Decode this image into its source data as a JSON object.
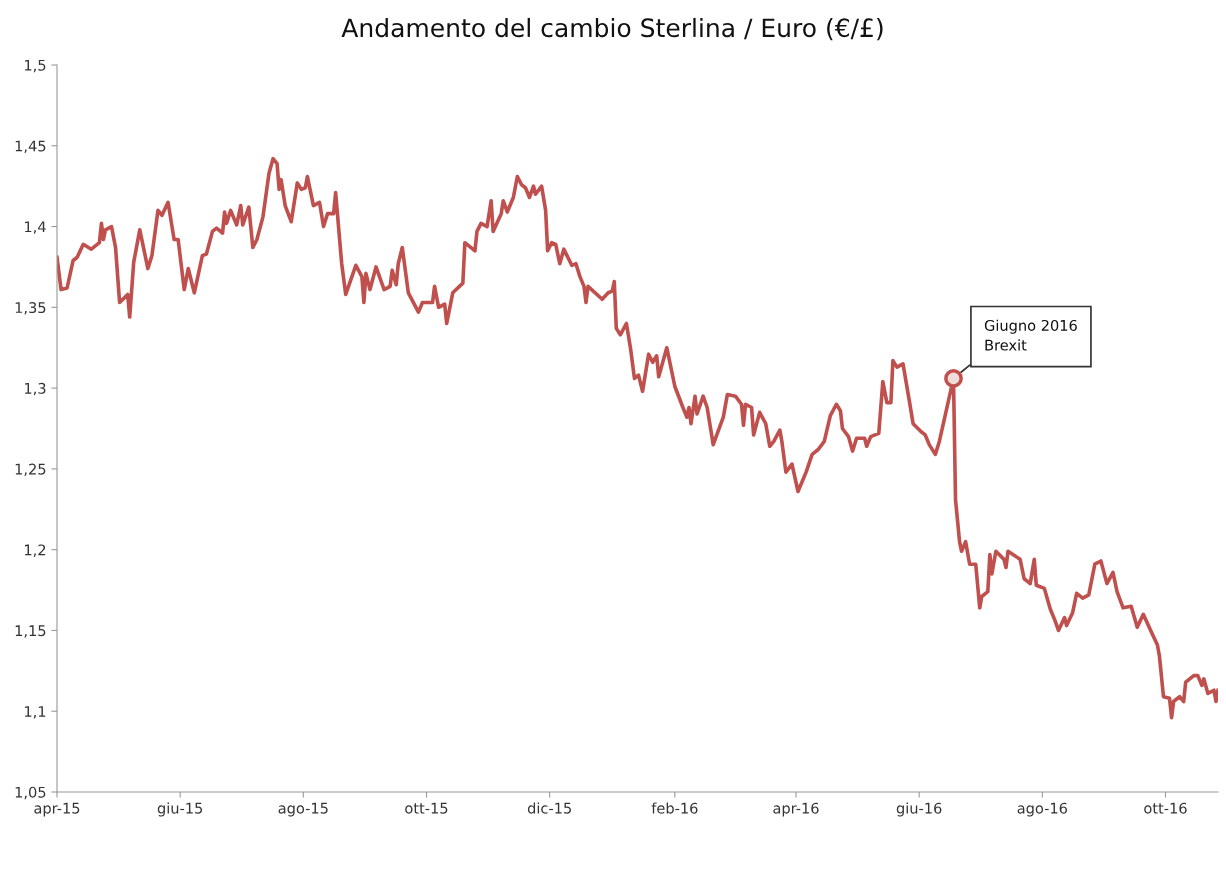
{
  "chart_data": {
    "type": "line",
    "title": "Andamento del cambio Sterlina / Euro (€/£)",
    "x": [
      "2015-04-01",
      "2015-04-03",
      "2015-04-06",
      "2015-04-09",
      "2015-04-11",
      "2015-04-14",
      "2015-04-18",
      "2015-04-22",
      "2015-04-23",
      "2015-04-24",
      "2015-04-25",
      "2015-04-28",
      "2015-04-30",
      "2015-05-02",
      "2015-05-06",
      "2015-05-07",
      "2015-05-09",
      "2015-05-12",
      "2015-05-16",
      "2015-05-18",
      "2015-05-21",
      "2015-05-23",
      "2015-05-26",
      "2015-05-29",
      "2015-05-31",
      "2015-06-03",
      "2015-06-05",
      "2015-06-08",
      "2015-06-12",
      "2015-06-14",
      "2015-06-17",
      "2015-06-19",
      "2015-06-22",
      "2015-06-23",
      "2015-06-24",
      "2015-06-26",
      "2015-06-29",
      "2015-07-01",
      "2015-07-02",
      "2015-07-05",
      "2015-07-07",
      "2015-07-09",
      "2015-07-12",
      "2015-07-15",
      "2015-07-17",
      "2015-07-19",
      "2015-07-20",
      "2015-07-21",
      "2015-07-23",
      "2015-07-26",
      "2015-07-29",
      "2015-07-31",
      "2015-08-02",
      "2015-08-03",
      "2015-08-06",
      "2015-08-09",
      "2015-08-11",
      "2015-08-13",
      "2015-08-16",
      "2015-08-17",
      "2015-08-20",
      "2015-08-22",
      "2015-08-27",
      "2015-08-30",
      "2015-08-31",
      "2015-09-01",
      "2015-09-03",
      "2015-09-06",
      "2015-09-10",
      "2015-09-13",
      "2015-09-14",
      "2015-09-16",
      "2015-09-17",
      "2015-09-19",
      "2015-09-22",
      "2015-09-27",
      "2015-09-29",
      "2015-10-04",
      "2015-10-05",
      "2015-10-07",
      "2015-10-10",
      "2015-10-11",
      "2015-10-14",
      "2015-10-19",
      "2015-10-20",
      "2015-10-25",
      "2015-10-26",
      "2015-10-28",
      "2015-10-31",
      "2015-11-02",
      "2015-11-03",
      "2015-11-07",
      "2015-11-08",
      "2015-11-10",
      "2015-11-13",
      "2015-11-15",
      "2015-11-17",
      "2015-11-19",
      "2015-11-21",
      "2015-11-23",
      "2015-11-24",
      "2015-11-27",
      "2015-11-29",
      "2015-11-30",
      "2015-12-02",
      "2015-12-04",
      "2015-12-06",
      "2015-12-08",
      "2015-12-12",
      "2015-12-14",
      "2015-12-16",
      "2015-12-18",
      "2015-12-19",
      "2015-12-20",
      "2015-12-27",
      "2015-12-30",
      "2016-01-01",
      "2016-01-02",
      "2016-01-03",
      "2016-01-05",
      "2016-01-08",
      "2016-01-10",
      "2016-01-12",
      "2016-01-14",
      "2016-01-16",
      "2016-01-19",
      "2016-01-21",
      "2016-01-23",
      "2016-01-24",
      "2016-01-28",
      "2016-02-01",
      "2016-02-05",
      "2016-02-07",
      "2016-02-08",
      "2016-02-09",
      "2016-02-11",
      "2016-02-12",
      "2016-02-15",
      "2016-02-17",
      "2016-02-20",
      "2016-02-25",
      "2016-02-27",
      "2016-03-02",
      "2016-03-05",
      "2016-03-06",
      "2016-03-07",
      "2016-03-10",
      "2016-03-11",
      "2016-03-14",
      "2016-03-17",
      "2016-03-19",
      "2016-03-21",
      "2016-03-24",
      "2016-03-25",
      "2016-03-27",
      "2016-03-30",
      "2016-04-02",
      "2016-04-06",
      "2016-04-09",
      "2016-04-12",
      "2016-04-15",
      "2016-04-18",
      "2016-04-21",
      "2016-04-23",
      "2016-04-24",
      "2016-04-27",
      "2016-04-29",
      "2016-05-01",
      "2016-05-05",
      "2016-05-06",
      "2016-05-08",
      "2016-05-12",
      "2016-05-14",
      "2016-05-16",
      "2016-05-18",
      "2016-05-19",
      "2016-05-21",
      "2016-05-24",
      "2016-05-27",
      "2016-05-29",
      "2016-06-02",
      "2016-06-04",
      "2016-06-06",
      "2016-06-09",
      "2016-06-11",
      "2016-06-18",
      "2016-06-19",
      "2016-06-21",
      "2016-06-22",
      "2016-06-24",
      "2016-06-26",
      "2016-06-29",
      "2016-07-01",
      "2016-07-02",
      "2016-07-05",
      "2016-07-06",
      "2016-07-07",
      "2016-07-09",
      "2016-07-13",
      "2016-07-14",
      "2016-07-15",
      "2016-07-21",
      "2016-07-23",
      "2016-07-26",
      "2016-07-28",
      "2016-07-29",
      "2016-08-02",
      "2016-08-05",
      "2016-08-07",
      "2016-08-09",
      "2016-08-12",
      "2016-08-13",
      "2016-08-16",
      "2016-08-18",
      "2016-08-21",
      "2016-08-24",
      "2016-08-27",
      "2016-08-30",
      "2016-09-02",
      "2016-09-05",
      "2016-09-07",
      "2016-09-10",
      "2016-09-14",
      "2016-09-17",
      "2016-09-20",
      "2016-09-24",
      "2016-09-27",
      "2016-09-28",
      "2016-09-30",
      "2016-10-03",
      "2016-10-04",
      "2016-10-05",
      "2016-10-08",
      "2016-10-10",
      "2016-10-11",
      "2016-10-15",
      "2016-10-17",
      "2016-10-19",
      "2016-10-20",
      "2016-10-22",
      "2016-10-25",
      "2016-10-26",
      "2016-10-27"
    ],
    "series": [
      {
        "color": "#c0504d",
        "values": [
          1.381,
          1.361,
          1.362,
          1.379,
          1.381,
          1.389,
          1.386,
          1.39,
          1.402,
          1.392,
          1.398,
          1.4,
          1.387,
          1.353,
          1.358,
          1.344,
          1.378,
          1.398,
          1.374,
          1.382,
          1.41,
          1.407,
          1.415,
          1.392,
          1.392,
          1.361,
          1.374,
          1.359,
          1.382,
          1.383,
          1.397,
          1.399,
          1.396,
          1.409,
          1.402,
          1.41,
          1.401,
          1.413,
          1.401,
          1.412,
          1.387,
          1.392,
          1.406,
          1.433,
          1.442,
          1.439,
          1.423,
          1.429,
          1.413,
          1.403,
          1.427,
          1.423,
          1.424,
          1.431,
          1.413,
          1.415,
          1.4,
          1.408,
          1.408,
          1.421,
          1.377,
          1.358,
          1.376,
          1.369,
          1.353,
          1.371,
          1.361,
          1.375,
          1.361,
          1.363,
          1.373,
          1.364,
          1.377,
          1.387,
          1.359,
          1.347,
          1.353,
          1.353,
          1.363,
          1.35,
          1.352,
          1.34,
          1.359,
          1.365,
          1.39,
          1.385,
          1.397,
          1.402,
          1.4,
          1.416,
          1.397,
          1.408,
          1.416,
          1.409,
          1.418,
          1.431,
          1.426,
          1.424,
          1.418,
          1.425,
          1.42,
          1.425,
          1.41,
          1.385,
          1.39,
          1.389,
          1.377,
          1.386,
          1.376,
          1.377,
          1.369,
          1.363,
          1.353,
          1.363,
          1.355,
          1.359,
          1.36,
          1.366,
          1.337,
          1.333,
          1.34,
          1.325,
          1.306,
          1.308,
          1.298,
          1.321,
          1.316,
          1.32,
          1.307,
          1.325,
          1.301,
          1.288,
          1.282,
          1.288,
          1.278,
          1.295,
          1.284,
          1.295,
          1.288,
          1.265,
          1.282,
          1.296,
          1.295,
          1.29,
          1.277,
          1.29,
          1.288,
          1.271,
          1.285,
          1.278,
          1.264,
          1.267,
          1.274,
          1.267,
          1.248,
          1.253,
          1.236,
          1.248,
          1.259,
          1.262,
          1.267,
          1.283,
          1.29,
          1.286,
          1.275,
          1.27,
          1.261,
          1.269,
          1.269,
          1.264,
          1.27,
          1.272,
          1.304,
          1.291,
          1.291,
          1.317,
          1.313,
          1.315,
          1.293,
          1.278,
          1.273,
          1.271,
          1.265,
          1.259,
          1.267,
          1.306,
          1.231,
          1.205,
          1.199,
          1.205,
          1.191,
          1.191,
          1.164,
          1.171,
          1.174,
          1.197,
          1.185,
          1.199,
          1.194,
          1.189,
          1.199,
          1.194,
          1.182,
          1.179,
          1.194,
          1.178,
          1.176,
          1.163,
          1.157,
          1.15,
          1.158,
          1.153,
          1.161,
          1.173,
          1.17,
          1.172,
          1.191,
          1.193,
          1.179,
          1.186,
          1.174,
          1.164,
          1.165,
          1.152,
          1.16,
          1.149,
          1.141,
          1.134,
          1.109,
          1.108,
          1.096,
          1.106,
          1.109,
          1.106,
          1.118,
          1.122,
          1.122,
          1.116,
          1.12,
          1.111,
          1.113,
          1.106,
          1.113
        ]
      }
    ],
    "xlim": [
      "2015-04-01",
      "2016-10-27"
    ],
    "xticks": [
      {
        "value": "2015-04-01",
        "label": "apr-15"
      },
      {
        "value": "2015-06-01",
        "label": "giu-15"
      },
      {
        "value": "2015-08-01",
        "label": "ago-15"
      },
      {
        "value": "2015-10-01",
        "label": "ott-15"
      },
      {
        "value": "2015-12-01",
        "label": "dic-15"
      },
      {
        "value": "2016-02-01",
        "label": "feb-16"
      },
      {
        "value": "2016-04-01",
        "label": "apr-16"
      },
      {
        "value": "2016-06-01",
        "label": "giu-16"
      },
      {
        "value": "2016-08-01",
        "label": "ago-16"
      },
      {
        "value": "2016-10-01",
        "label": "ott-16"
      }
    ],
    "ylim": [
      1.05,
      1.5
    ],
    "yticks": [
      {
        "value": 1.05,
        "label": "1,05"
      },
      {
        "value": 1.1,
        "label": "1,1"
      },
      {
        "value": 1.15,
        "label": "1,15"
      },
      {
        "value": 1.2,
        "label": "1,2"
      },
      {
        "value": 1.25,
        "label": "1,25"
      },
      {
        "value": 1.3,
        "label": "1,3"
      },
      {
        "value": 1.35,
        "label": "1,35"
      },
      {
        "value": 1.4,
        "label": "1,4"
      },
      {
        "value": 1.45,
        "label": "1,45"
      },
      {
        "value": 1.5,
        "label": "1,5"
      }
    ],
    "grid": false,
    "annotations": [
      {
        "text": "Giugno 2016\nBrexit",
        "x": "2016-06-18",
        "y": 1.306
      }
    ]
  }
}
